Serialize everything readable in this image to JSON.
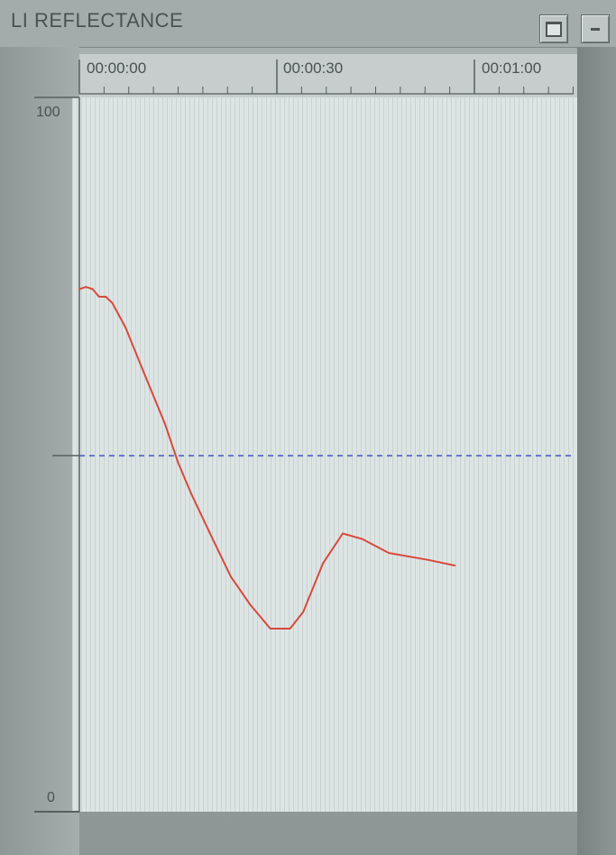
{
  "window": {
    "title": "LI REFLECTANCE",
    "buttons": {
      "maximize": "maximize",
      "minimize": "minimize"
    }
  },
  "chart_data": {
    "type": "line",
    "title": "LI REFLECTANCE",
    "x_ticks": [
      "00:00:00",
      "00:00:30",
      "00:01:00"
    ],
    "y_ticks": [
      "100",
      "0"
    ],
    "ylim": [
      0,
      100
    ],
    "xlim_seconds": [
      0,
      75
    ],
    "threshold": {
      "value": 51,
      "color": "#4a5bc8",
      "style": "dashed"
    },
    "series": [
      {
        "color": "#d8493b",
        "x_seconds": [
          0,
          1,
          2,
          3,
          4,
          5,
          7,
          10,
          13,
          15,
          17,
          20,
          23,
          26,
          29,
          32,
          34,
          37,
          40,
          43,
          47,
          53,
          57
        ],
        "y": [
          75.0,
          75.3,
          75.0,
          73.9,
          73.9,
          73.0,
          69.5,
          62.5,
          55.6,
          50.0,
          45.5,
          39.5,
          33.6,
          29.5,
          26.1,
          26.1,
          28.5,
          35.5,
          39.8,
          39.0,
          37.0,
          36.0,
          35.2
        ]
      }
    ]
  },
  "colors": {
    "plot_bg": "#dde5e4",
    "line": "#d8493b",
    "threshold": "#4a5bc8",
    "frame": "#9fa7a6"
  }
}
